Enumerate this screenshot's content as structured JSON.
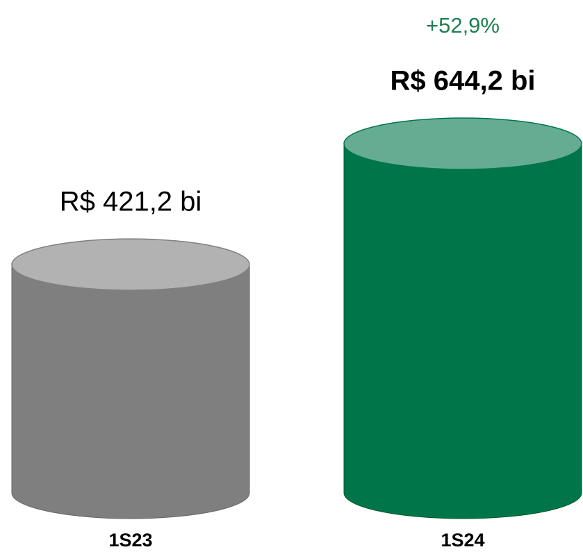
{
  "chart_data": {
    "type": "cylinder",
    "categories": [
      "1S23",
      "1S24"
    ],
    "values": [
      421.2,
      644.2
    ],
    "value_labels": [
      "R$ 421,2 bi",
      "R$ 644,2 bi"
    ],
    "colors": [
      "#7f7f7f",
      "#00754a"
    ],
    "annotation": "+52,9%",
    "annotation_color": "#1e8050"
  }
}
